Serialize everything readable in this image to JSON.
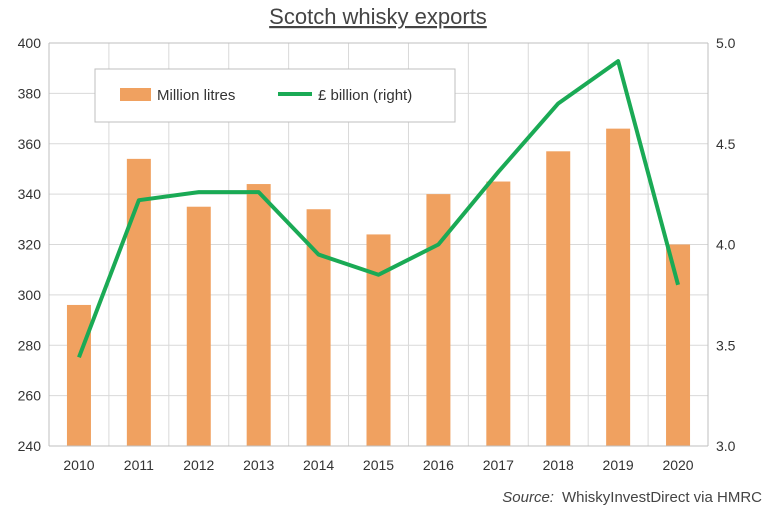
{
  "chart_data": {
    "type": "bar",
    "title": "Scotch whisky exports",
    "categories": [
      "2010",
      "2011",
      "2012",
      "2013",
      "2014",
      "2015",
      "2016",
      "2017",
      "2018",
      "2019",
      "2020"
    ],
    "series": [
      {
        "name": "Million litres",
        "type": "bar",
        "axis": "left",
        "color": "#f0a160",
        "values": [
          296,
          354,
          335,
          344,
          334,
          324,
          340,
          345,
          357,
          366,
          320
        ]
      },
      {
        "name": "£ billion (right)",
        "type": "line",
        "axis": "right",
        "color": "#1aaa55",
        "values": [
          3.44,
          4.22,
          4.26,
          4.26,
          3.95,
          3.85,
          4.0,
          4.36,
          4.7,
          4.91,
          3.8
        ]
      }
    ],
    "y_left": {
      "min": 240,
      "max": 400,
      "step": 20,
      "ticks": [
        "240",
        "260",
        "280",
        "300",
        "320",
        "340",
        "360",
        "380",
        "400"
      ]
    },
    "y_right": {
      "min": 3.0,
      "max": 5.0,
      "step": 0.5,
      "ticks": [
        "3.0",
        "3.5",
        "4.0",
        "4.5",
        "5.0"
      ]
    },
    "grid": true,
    "legend_position": "top-left inside plot",
    "source_label": "Source:",
    "source_text": "WhiskyInvestDirect via HMRC"
  }
}
